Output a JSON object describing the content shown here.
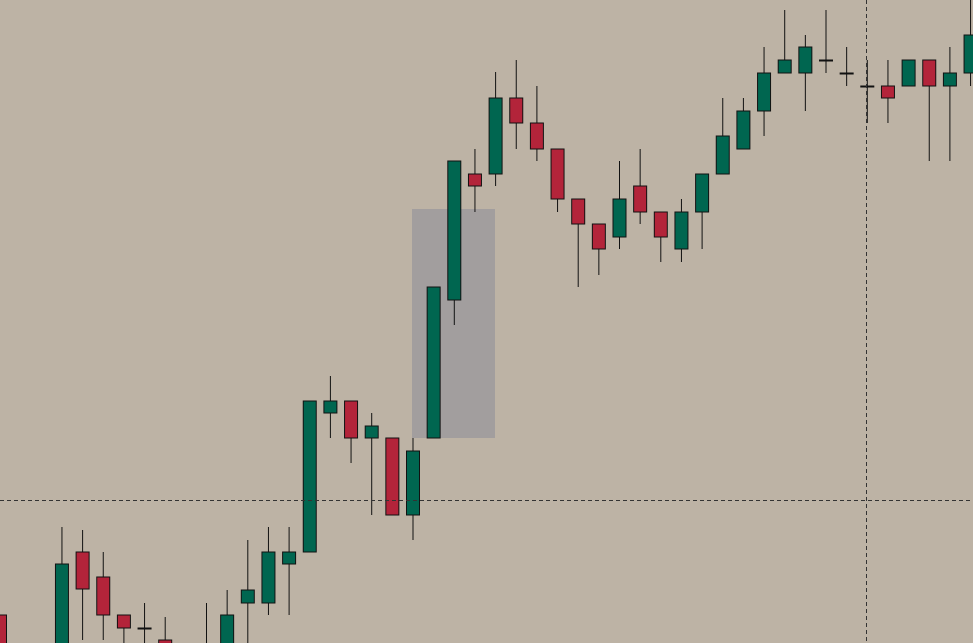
{
  "chart_data": {
    "type": "candlestick",
    "open": [
      28,
      null,
      null,
      -5,
      91,
      66,
      28,
      15,
      3,
      null,
      -25,
      -5,
      40,
      40,
      79,
      91,
      230,
      242,
      205,
      205,
      128,
      205,
      343,
      469,
      469,
      545,
      520,
      494,
      444,
      419,
      406,
      457,
      431,
      394,
      431,
      469,
      494,
      532,
      570,
      570,
      583,
      570,
      557,
      557,
      557,
      583,
      557,
      570
    ],
    "high": [
      28,
      null,
      null,
      116,
      113,
      91,
      28,
      40,
      26,
      null,
      40,
      53,
      103,
      116,
      116,
      242,
      267,
      242,
      230,
      205,
      205,
      356,
      482,
      494,
      571,
      583,
      557,
      494,
      444,
      419,
      482,
      494,
      431,
      444,
      469,
      545,
      545,
      596,
      633,
      608,
      633,
      596,
      583,
      583,
      583,
      583,
      596,
      643
    ],
    "low": [
      -10,
      null,
      null,
      -10,
      3,
      3,
      0,
      0,
      -10,
      null,
      -30,
      -10,
      0,
      28,
      28,
      91,
      205,
      180,
      128,
      128,
      103,
      205,
      318,
      431,
      457,
      494,
      482,
      431,
      356,
      368,
      394,
      419,
      381,
      381,
      394,
      469,
      494,
      507,
      570,
      532,
      570,
      557,
      520,
      520,
      557,
      482,
      482,
      557
    ],
    "close": [
      -5,
      null,
      null,
      79,
      54,
      28,
      15,
      14,
      -2,
      null,
      -5,
      28,
      53,
      91,
      91,
      242,
      242,
      205,
      217,
      128,
      192,
      356,
      482,
      457,
      545,
      520,
      494,
      444,
      419,
      394,
      444,
      431,
      406,
      431,
      469,
      507,
      532,
      570,
      583,
      596,
      583,
      570,
      557,
      545,
      583,
      557,
      570,
      608
    ],
    "up_color": "#006650",
    "down_color": "#b3243a",
    "ylim": [
      0,
      643
    ]
  }
}
